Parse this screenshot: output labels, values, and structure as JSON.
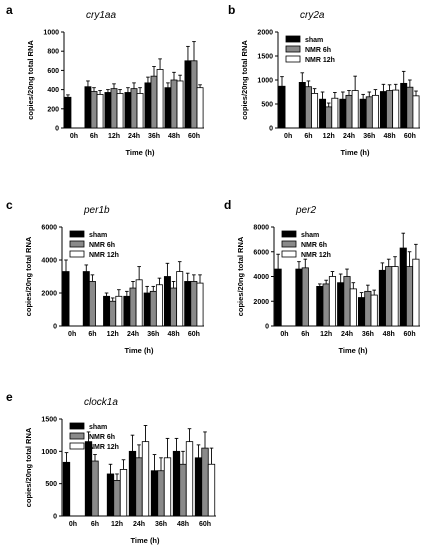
{
  "figure": {
    "colors": {
      "sham": "#000000",
      "nmr6h": "#8a8a8a",
      "nmr12h": "#ffffff",
      "outline": "#000000"
    },
    "legend": [
      "sham",
      "NMR 6h",
      "NMR 12h"
    ]
  },
  "chart_data": [
    {
      "type": "bar",
      "panel": "a",
      "title": "cry1aa",
      "xlabel": "Time (h)",
      "ylabel": "copies/20ng total RNA",
      "categories": [
        "0h",
        "6h",
        "12h",
        "24h",
        "36h",
        "48h",
        "60h"
      ],
      "ylim": [
        0,
        1000
      ],
      "yticks": [
        0,
        200,
        400,
        600,
        800,
        1000
      ],
      "legend_position": "none",
      "series": [
        {
          "name": "sham",
          "values": [
            320,
            430,
            370,
            370,
            470,
            420,
            700
          ],
          "errors": [
            25,
            60,
            30,
            50,
            60,
            50,
            150
          ]
        },
        {
          "name": "NMR 6h",
          "values": [
            null,
            380,
            410,
            410,
            540,
            500,
            700
          ],
          "errors": [
            null,
            40,
            50,
            60,
            100,
            80,
            200
          ]
        },
        {
          "name": "NMR 12h",
          "values": [
            null,
            350,
            360,
            360,
            610,
            490,
            420
          ],
          "errors": [
            null,
            40,
            40,
            60,
            110,
            60,
            30
          ]
        }
      ]
    },
    {
      "type": "bar",
      "panel": "b",
      "title": "cry2a",
      "xlabel": "Time (h)",
      "ylabel": "copies/20ng total RNA",
      "categories": [
        "0h",
        "6h",
        "12h",
        "24h",
        "36h",
        "48h",
        "60h"
      ],
      "ylim": [
        0,
        2000
      ],
      "yticks": [
        0,
        500,
        1000,
        1500,
        2000
      ],
      "legend_position": "top-left",
      "series": [
        {
          "name": "sham",
          "values": [
            870,
            950,
            600,
            600,
            600,
            760,
            930
          ],
          "errors": [
            200,
            200,
            150,
            150,
            100,
            150,
            250
          ]
        },
        {
          "name": "NMR 6h",
          "values": [
            null,
            860,
            440,
            680,
            650,
            780,
            850
          ],
          "errors": [
            null,
            120,
            80,
            100,
            100,
            120,
            150
          ]
        },
        {
          "name": "NMR 12h",
          "values": [
            null,
            720,
            620,
            780,
            680,
            790,
            670
          ],
          "errors": [
            null,
            100,
            120,
            300,
            120,
            120,
            100
          ]
        }
      ]
    },
    {
      "type": "bar",
      "panel": "c",
      "title": "per1b",
      "xlabel": "Time (h)",
      "ylabel": "copies/20ng total RNA",
      "categories": [
        "0h",
        "6h",
        "12h",
        "24h",
        "36h",
        "48h",
        "60h"
      ],
      "ylim": [
        0,
        6000
      ],
      "yticks": [
        0,
        2000,
        4000,
        6000
      ],
      "legend_position": "top-left",
      "series": [
        {
          "name": "sham",
          "values": [
            3300,
            3300,
            1800,
            1800,
            2000,
            3000,
            2700
          ],
          "errors": [
            700,
            400,
            200,
            300,
            400,
            800,
            500
          ]
        },
        {
          "name": "NMR 6h",
          "values": [
            null,
            2700,
            1500,
            2300,
            2100,
            2300,
            2700
          ],
          "errors": [
            null,
            400,
            200,
            400,
            300,
            400,
            400
          ]
        },
        {
          "name": "NMR 12h",
          "values": [
            null,
            null,
            1800,
            2800,
            2500,
            3300,
            2600
          ],
          "errors": [
            null,
            null,
            400,
            800,
            400,
            600,
            500
          ]
        }
      ]
    },
    {
      "type": "bar",
      "panel": "d",
      "title": "per2",
      "xlabel": "Time (h)",
      "ylabel": "copies/20ng total RNA",
      "categories": [
        "0h",
        "6h",
        "12h",
        "24h",
        "36h",
        "48h",
        "60h"
      ],
      "ylim": [
        0,
        8000
      ],
      "yticks": [
        0,
        2000,
        4000,
        6000,
        8000
      ],
      "legend_position": "top-left",
      "series": [
        {
          "name": "sham",
          "values": [
            4600,
            4600,
            3200,
            3500,
            2300,
            4500,
            6300
          ],
          "errors": [
            1200,
            600,
            200,
            700,
            400,
            600,
            1200
          ]
        },
        {
          "name": "NMR 6h",
          "values": [
            null,
            4700,
            3400,
            4000,
            2800,
            4800,
            4800
          ],
          "errors": [
            null,
            700,
            300,
            600,
            500,
            600,
            1200
          ]
        },
        {
          "name": "NMR 12h",
          "values": [
            null,
            null,
            4000,
            3000,
            2500,
            4800,
            5400
          ],
          "errors": [
            null,
            null,
            400,
            500,
            400,
            800,
            1200
          ]
        }
      ]
    },
    {
      "type": "bar",
      "panel": "e",
      "title": "clock1a",
      "xlabel": "Time (h)",
      "ylabel": "copies/20ng total RNA",
      "categories": [
        "0h",
        "6h",
        "12h",
        "24h",
        "36h",
        "48h",
        "60h"
      ],
      "ylim": [
        0,
        1500
      ],
      "yticks": [
        0,
        500,
        1000,
        1500
      ],
      "legend_position": "top-left",
      "series": [
        {
          "name": "sham",
          "values": [
            830,
            1150,
            650,
            1000,
            700,
            1000,
            900
          ],
          "errors": [
            150,
            150,
            150,
            250,
            250,
            200,
            200
          ]
        },
        {
          "name": "NMR 6h",
          "values": [
            null,
            850,
            550,
            900,
            700,
            800,
            1050
          ],
          "errors": [
            null,
            100,
            100,
            200,
            200,
            200,
            250
          ]
        },
        {
          "name": "NMR 12h",
          "values": [
            null,
            null,
            720,
            1150,
            900,
            1150,
            800
          ],
          "errors": [
            null,
            null,
            150,
            250,
            300,
            200,
            250
          ]
        }
      ]
    }
  ]
}
